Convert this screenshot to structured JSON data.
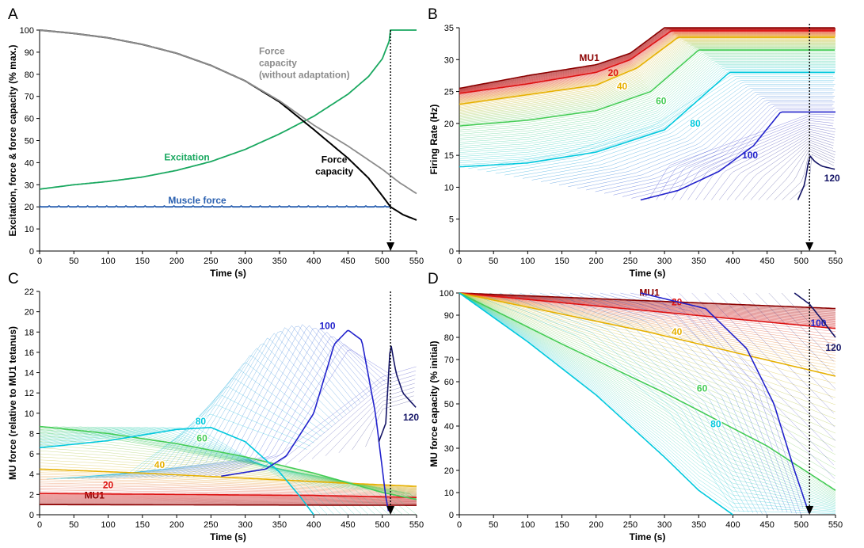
{
  "figure": {
    "colors": {
      "mu1": "#8b0000",
      "mu20": "#dd1111",
      "mu40": "#e6b000",
      "mu60": "#44cc55",
      "mu80": "#00c8dd",
      "mu100": "#2222cc",
      "mu120": "#141466",
      "excitation": "#1aa860",
      "muscle_force": "#2a60b0",
      "force_capacity": "#000000",
      "force_capacity_no_adapt": "#8c8c8c"
    }
  },
  "chart_data": [
    {
      "panel": "A",
      "type": "line",
      "xlabel": "Time (s)",
      "ylabel": "Excitation, force & force capacity (% max.)",
      "xlim": [
        0,
        550
      ],
      "ylim": [
        0,
        100
      ],
      "xticks": [
        "0",
        "50",
        "100",
        "150",
        "200",
        "250",
        "300",
        "350",
        "400",
        "450",
        "500",
        "550"
      ],
      "yticks": [
        "0",
        "10",
        "20",
        "30",
        "40",
        "50",
        "60",
        "70",
        "80",
        "90",
        "100"
      ],
      "failure_time": 512,
      "series": [
        {
          "name": "Excitation",
          "label": "Excitation",
          "color_key": "excitation",
          "x": [
            0,
            50,
            100,
            150,
            200,
            250,
            300,
            350,
            400,
            450,
            480,
            500,
            510,
            512,
            520,
            550
          ],
          "y": [
            28,
            30,
            31.5,
            33.5,
            36.5,
            40.5,
            46,
            53,
            61,
            71,
            79,
            87,
            95,
            100,
            100,
            100
          ]
        },
        {
          "name": "Muscle force",
          "label": "Muscle force",
          "color_key": "muscle_force",
          "x": [
            0,
            512
          ],
          "y": [
            20,
            20
          ]
        },
        {
          "name": "Force capacity",
          "label_lines": [
            "Force",
            "capacity"
          ],
          "color_key": "force_capacity",
          "x": [
            0,
            50,
            100,
            150,
            200,
            250,
            300,
            350,
            400,
            450,
            480,
            500,
            512,
            530,
            550
          ],
          "y": [
            100,
            98.5,
            96.5,
            93.5,
            89.5,
            84,
            77,
            67.5,
            55,
            42,
            33,
            25,
            20,
            16.5,
            14
          ]
        },
        {
          "name": "Force capacity (without adaptation)",
          "label_lines": [
            "Force",
            "capacity",
            "(without adaptation)"
          ],
          "color_key": "force_capacity_no_adapt",
          "x": [
            0,
            50,
            100,
            150,
            200,
            250,
            300,
            350,
            400,
            450,
            500,
            525,
            550
          ],
          "y": [
            100,
            98.5,
            96.5,
            93.5,
            89.5,
            84,
            77,
            68,
            57,
            47.5,
            37,
            31,
            26
          ]
        }
      ]
    },
    {
      "panel": "B",
      "type": "line",
      "xlabel": "Time (s)",
      "ylabel": "Firing Rate (Hz)",
      "xlim": [
        0,
        550
      ],
      "ylim": [
        0,
        35
      ],
      "xticks": [
        "0",
        "50",
        "100",
        "150",
        "200",
        "250",
        "300",
        "350",
        "400",
        "450",
        "500",
        "550"
      ],
      "yticks": [
        "0",
        "5",
        "10",
        "15",
        "20",
        "25",
        "30",
        "35"
      ],
      "failure_time": 512,
      "series": [
        {
          "name": "MU1",
          "label": "MU1",
          "color_key": "mu1",
          "x": [
            0,
            100,
            200,
            250,
            300,
            550
          ],
          "y": [
            25.5,
            27.5,
            29.2,
            31,
            35,
            35
          ]
        },
        {
          "name": "MU20",
          "label": "20",
          "color_key": "mu20",
          "x": [
            0,
            100,
            200,
            250,
            310,
            550
          ],
          "y": [
            24.7,
            26.2,
            28,
            30,
            34.5,
            34.5
          ]
        },
        {
          "name": "MU40",
          "label": "40",
          "color_key": "mu40",
          "x": [
            0,
            100,
            200,
            260,
            320,
            550
          ],
          "y": [
            23,
            24.5,
            26,
            28.7,
            33.5,
            33.5
          ]
        },
        {
          "name": "MU60",
          "label": "60",
          "color_key": "mu60",
          "x": [
            0,
            100,
            200,
            280,
            350,
            550
          ],
          "y": [
            19.6,
            20.5,
            22,
            25,
            31.5,
            31.5
          ]
        },
        {
          "name": "MU80",
          "label": "80",
          "color_key": "mu80",
          "x": [
            0,
            100,
            200,
            300,
            395,
            550
          ],
          "y": [
            13.2,
            13.8,
            15.5,
            19,
            28,
            28
          ]
        },
        {
          "name": "MU100",
          "label": "100",
          "color_key": "mu100",
          "x": [
            265,
            320,
            380,
            430,
            470,
            550
          ],
          "y": [
            8,
            9.5,
            12.5,
            16.5,
            21.8,
            21.8
          ]
        },
        {
          "name": "MU120",
          "label": "120",
          "color_key": "mu120",
          "x": [
            495,
            505,
            512,
            520,
            530,
            550
          ],
          "y": [
            8,
            10.5,
            15,
            14,
            13.3,
            12.8
          ]
        }
      ]
    },
    {
      "panel": "C",
      "type": "line",
      "xlabel": "Time (s)",
      "ylabel": "MU force (relative to MU1 tetanus)",
      "xlim": [
        0,
        550
      ],
      "ylim": [
        0,
        22
      ],
      "xticks": [
        "0",
        "50",
        "100",
        "150",
        "200",
        "250",
        "300",
        "350",
        "400",
        "450",
        "500",
        "550"
      ],
      "yticks": [
        "0",
        "2",
        "4",
        "6",
        "8",
        "10",
        "12",
        "14",
        "16",
        "18",
        "20",
        "22"
      ],
      "failure_time": 512,
      "series": [
        {
          "name": "MU1",
          "label": "MU1",
          "color_key": "mu1",
          "x": [
            0,
            550
          ],
          "y": [
            1,
            0.93
          ]
        },
        {
          "name": "MU20",
          "label": "20",
          "color_key": "mu20",
          "x": [
            0,
            200,
            400,
            550
          ],
          "y": [
            2.1,
            2,
            1.9,
            1.7
          ]
        },
        {
          "name": "MU40",
          "label": "40",
          "color_key": "mu40",
          "x": [
            0,
            150,
            300,
            450,
            550
          ],
          "y": [
            4.5,
            4.1,
            3.6,
            3.1,
            2.8
          ]
        },
        {
          "name": "MU60",
          "label": "60",
          "color_key": "mu60",
          "x": [
            0,
            100,
            200,
            300,
            400,
            500,
            550
          ],
          "y": [
            8.7,
            8,
            7,
            5.7,
            4.1,
            2.2,
            1.5
          ]
        },
        {
          "name": "MU80",
          "label": "80",
          "color_key": "mu80",
          "x": [
            0,
            100,
            200,
            250,
            300,
            350,
            380,
            400
          ],
          "y": [
            6.6,
            7.3,
            8.4,
            8.6,
            7.2,
            4.2,
            1.8,
            0
          ]
        },
        {
          "name": "MU100",
          "label": "100",
          "color_key": "mu100",
          "x": [
            265,
            330,
            360,
            400,
            430,
            450,
            470,
            490,
            505,
            510
          ],
          "y": [
            3.8,
            4.5,
            5.8,
            10,
            16.8,
            18.2,
            17.2,
            10,
            1.8,
            0
          ]
        },
        {
          "name": "MU120",
          "label": "120",
          "color_key": "mu120",
          "x": [
            495,
            505,
            512,
            520,
            530,
            550
          ],
          "y": [
            7.2,
            9,
            17,
            14,
            12,
            10.5
          ]
        }
      ]
    },
    {
      "panel": "D",
      "type": "line",
      "xlabel": "Time (s)",
      "ylabel": "MU force capacity (% initial)",
      "xlim": [
        0,
        550
      ],
      "ylim": [
        0,
        100
      ],
      "xticks": [
        "0",
        "50",
        "100",
        "150",
        "200",
        "250",
        "300",
        "350",
        "400",
        "450",
        "500",
        "550"
      ],
      "yticks": [
        "0",
        "10",
        "20",
        "30",
        "40",
        "50",
        "60",
        "70",
        "80",
        "90",
        "100"
      ],
      "failure_time": 512,
      "series": [
        {
          "name": "MU1",
          "label": "MU1",
          "color_key": "mu1",
          "x": [
            0,
            550
          ],
          "y": [
            100,
            93
          ]
        },
        {
          "name": "MU20",
          "label": "20",
          "color_key": "mu20",
          "x": [
            0,
            550
          ],
          "y": [
            100,
            84
          ]
        },
        {
          "name": "MU40",
          "label": "40",
          "color_key": "mu40",
          "x": [
            0,
            275,
            550
          ],
          "y": [
            100,
            82.5,
            62.5
          ]
        },
        {
          "name": "MU60",
          "label": "60",
          "color_key": "mu60",
          "x": [
            0,
            150,
            300,
            450,
            550
          ],
          "y": [
            100,
            77,
            55,
            31,
            11
          ]
        },
        {
          "name": "MU80",
          "label": "80",
          "color_key": "mu80",
          "x": [
            0,
            100,
            200,
            300,
            350,
            400
          ],
          "y": [
            100,
            78,
            54,
            26,
            11,
            0
          ]
        },
        {
          "name": "MU100",
          "label": "100",
          "color_key": "mu100",
          "x": [
            265,
            360,
            420,
            460,
            490,
            512
          ],
          "y": [
            100,
            93,
            75,
            50,
            20,
            0
          ]
        },
        {
          "name": "MU120",
          "label": "120",
          "color_key": "mu120",
          "x": [
            490,
            512,
            530,
            550
          ],
          "y": [
            100,
            95,
            88,
            80
          ]
        }
      ]
    }
  ]
}
